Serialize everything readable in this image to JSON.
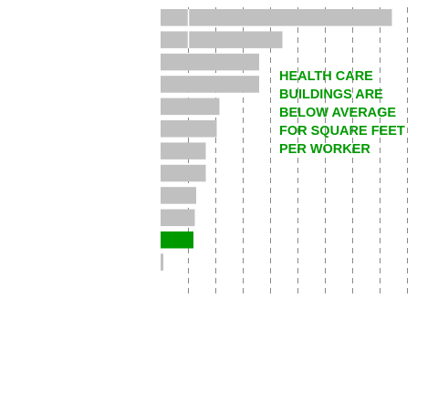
{
  "chart_data": {
    "type": "bar",
    "orientation": "horizontal",
    "title": "",
    "xlabel": "",
    "ylabel": "",
    "categories": [
      "",
      "",
      "",
      "",
      "",
      "",
      "",
      "",
      "",
      "",
      "",
      ""
    ],
    "values": [
      7450,
      3450,
      2600,
      2600,
      1150,
      1050,
      650,
      650,
      300,
      250,
      200,
      -100
    ],
    "highlight_index": 10,
    "xlim": [
      -1000,
      8000
    ],
    "grid_x": [
      0,
      1000,
      2000,
      3000,
      4000,
      5000,
      6000,
      7000,
      8000
    ],
    "grid": true,
    "legend": "none",
    "annotation": {
      "lines": [
        "HEALTH CARE",
        "BUILDINGS ARE",
        "BELOW AVERAGE",
        "FOR SQUARE FEET",
        "PER WORKER"
      ],
      "placement": "upper-right"
    },
    "colors": {
      "bar": "#c0c0c0",
      "highlight": "#009900",
      "annotation": "#009900",
      "gridline": "#888888",
      "inner_gridline": "#ffffff"
    }
  }
}
